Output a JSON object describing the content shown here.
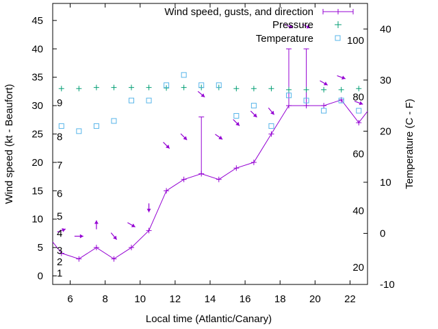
{
  "chart_data": {
    "type": "line",
    "title": "",
    "xlabel": "Local time (Atlantic/Canary)",
    "ylabel": "Wind speed (kt - Beaufort)",
    "y2label": "Temperature (C - F)",
    "xlim": [
      5,
      23
    ],
    "ylim": [
      -1.5,
      48
    ],
    "y2lim": [
      -10,
      45
    ],
    "x_ticks": [
      "6",
      "8",
      "10",
      "12",
      "14",
      "16",
      "18",
      "20",
      "22"
    ],
    "y_ticks": [
      "0",
      "5",
      "10",
      "15",
      "20",
      "25",
      "30",
      "35",
      "40",
      "45"
    ],
    "y2_ticks": [
      "-10",
      "0",
      "10",
      "20",
      "30",
      "40"
    ],
    "beaufort_labels": [
      "1",
      "2",
      "3",
      "4",
      "5",
      "6",
      "7",
      "8",
      "9"
    ],
    "fahrenheit_labels": [
      "20",
      "40",
      "60",
      "80",
      "100"
    ],
    "legend_position": "top-right",
    "legend": {
      "wind": "Wind speed, gusts, and direction",
      "pressure": "Pressure",
      "temperature": "Temperature"
    },
    "colors": {
      "wind": "#9400d3",
      "pressure": "#009e73",
      "temperature": "#56b4e9"
    },
    "wind_speed": {
      "x": [
        5,
        5.5,
        6.5,
        7.5,
        8.5,
        9.5,
        10.5,
        11.5,
        12.5,
        13.5,
        14.5,
        15.5,
        16.5,
        17.5,
        18.5,
        19.5,
        20.5,
        21.5,
        22.5,
        23
      ],
      "y": [
        6,
        4,
        3,
        5,
        3,
        5,
        8,
        15,
        17,
        18,
        17,
        19,
        20,
        25,
        30,
        30,
        30,
        31,
        27,
        29
      ]
    },
    "gusts": [
      {
        "x": 13.5,
        "low": 18,
        "high": 28
      },
      {
        "x": 18.5,
        "low": 30,
        "high": 40
      },
      {
        "x": 19.5,
        "low": 30,
        "high": 40
      }
    ],
    "direction_arrows": [
      {
        "x": 5.5,
        "y": 8,
        "to_deg": 70
      },
      {
        "x": 6.5,
        "y": 7,
        "to_deg": 90
      },
      {
        "x": 7.5,
        "y": 9,
        "to_deg": 0
      },
      {
        "x": 8.5,
        "y": 7,
        "to_deg": 140
      },
      {
        "x": 9.5,
        "y": 9,
        "to_deg": 120
      },
      {
        "x": 10.5,
        "y": 12,
        "to_deg": 180
      },
      {
        "x": 11.5,
        "y": 23,
        "to_deg": 135
      },
      {
        "x": 12.5,
        "y": 24.5,
        "to_deg": 135
      },
      {
        "x": 13.5,
        "y": 32,
        "to_deg": 130
      },
      {
        "x": 14.5,
        "y": 24.5,
        "to_deg": 125
      },
      {
        "x": 15.5,
        "y": 27,
        "to_deg": 135
      },
      {
        "x": 16.5,
        "y": 28.5,
        "to_deg": 135
      },
      {
        "x": 17.5,
        "y": 29,
        "to_deg": 140
      },
      {
        "x": 18.5,
        "y": 44,
        "to_deg": 115
      },
      {
        "x": 19.5,
        "y": 44,
        "to_deg": 115
      },
      {
        "x": 20.5,
        "y": 34,
        "to_deg": 120
      },
      {
        "x": 21.5,
        "y": 35,
        "to_deg": 110
      },
      {
        "x": 22.5,
        "y": 30.5,
        "to_deg": 110
      }
    ],
    "pressure": {
      "x": [
        5.5,
        6.5,
        7.5,
        8.5,
        9.5,
        10.5,
        11.5,
        12.5,
        13.5,
        14.5,
        15.5,
        16.5,
        17.5,
        18.5,
        19.5,
        20.5,
        21.5,
        22.5
      ],
      "y": [
        33,
        33,
        33.2,
        33.2,
        33.2,
        33.2,
        33.1,
        33.2,
        33.2,
        33.2,
        33,
        33,
        33,
        32.8,
        32.8,
        32.8,
        32.8,
        33
      ]
    },
    "temperature": {
      "x": [
        5.5,
        6.5,
        7.5,
        8.5,
        9.5,
        10.5,
        11.5,
        12.5,
        13.5,
        14.5,
        15.5,
        16.5,
        17.5,
        18.5,
        19.5,
        20.5,
        21.5,
        22.5
      ],
      "y": [
        21,
        20,
        21,
        22,
        26,
        26,
        29,
        31,
        29,
        29,
        23,
        25,
        21,
        27,
        26,
        24,
        26,
        24
      ]
    }
  }
}
